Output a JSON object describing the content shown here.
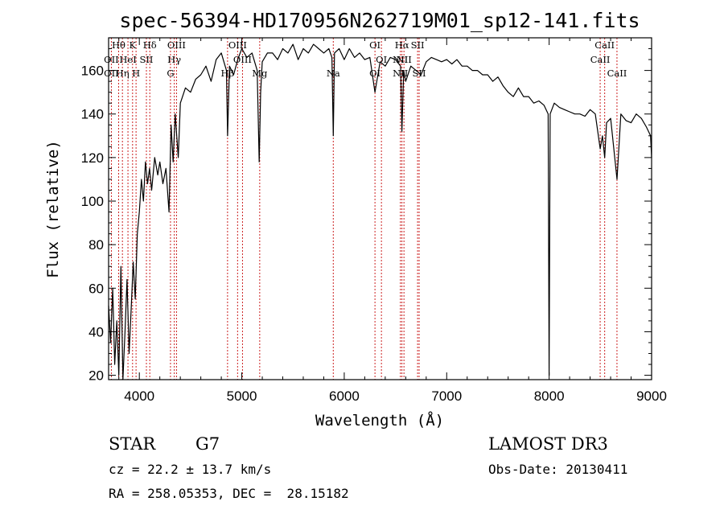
{
  "chart_data": {
    "type": "line",
    "title": "spec-56394-HD170956N262719M01_sp12-141.fits",
    "xlabel": "Wavelength (Å)",
    "ylabel": "Flux (relative)",
    "xlim": [
      3700,
      9000
    ],
    "ylim": [
      18,
      175
    ],
    "xticks": [
      4000,
      5000,
      6000,
      7000,
      8000,
      9000
    ],
    "yticks": [
      20,
      40,
      60,
      80,
      100,
      120,
      140,
      160
    ],
    "grid": false,
    "series": [
      {
        "name": "flux",
        "x": [
          3700,
          3720,
          3740,
          3760,
          3780,
          3800,
          3820,
          3840,
          3860,
          3880,
          3900,
          3920,
          3940,
          3960,
          3980,
          4000,
          4020,
          4040,
          4060,
          4080,
          4100,
          4120,
          4150,
          4180,
          4200,
          4230,
          4260,
          4290,
          4310,
          4330,
          4350,
          4380,
          4400,
          4450,
          4500,
          4550,
          4600,
          4650,
          4700,
          4750,
          4800,
          4850,
          4861,
          4880,
          4920,
          4960,
          5000,
          5050,
          5100,
          5150,
          5170,
          5184,
          5200,
          5250,
          5300,
          5350,
          5400,
          5450,
          5500,
          5550,
          5600,
          5650,
          5700,
          5750,
          5800,
          5850,
          5880,
          5893,
          5905,
          5950,
          6000,
          6050,
          6100,
          6150,
          6200,
          6250,
          6300,
          6350,
          6400,
          6450,
          6500,
          6550,
          6563,
          6580,
          6600,
          6650,
          6700,
          6750,
          6800,
          6850,
          6900,
          6950,
          7000,
          7050,
          7100,
          7150,
          7200,
          7250,
          7300,
          7350,
          7400,
          7450,
          7500,
          7550,
          7600,
          7650,
          7700,
          7750,
          7800,
          7850,
          7900,
          7950,
          7990,
          8000,
          8010,
          8050,
          8100,
          8150,
          8200,
          8250,
          8300,
          8350,
          8400,
          8450,
          8498,
          8520,
          8542,
          8560,
          8600,
          8662,
          8700,
          8750,
          8800,
          8850,
          8900,
          8950,
          8990,
          9000
        ],
        "y": [
          52,
          35,
          60,
          25,
          45,
          20,
          70,
          18,
          40,
          64,
          30,
          50,
          72,
          55,
          85,
          95,
          110,
          100,
          118,
          108,
          115,
          105,
          120,
          112,
          118,
          108,
          115,
          95,
          135,
          118,
          140,
          120,
          145,
          152,
          150,
          156,
          158,
          162,
          155,
          165,
          168,
          160,
          130,
          162,
          158,
          165,
          170,
          166,
          168,
          160,
          118,
          150,
          164,
          168,
          168,
          165,
          170,
          168,
          172,
          165,
          170,
          168,
          172,
          170,
          168,
          170,
          166,
          130,
          168,
          170,
          165,
          170,
          166,
          168,
          165,
          166,
          150,
          164,
          162,
          166,
          165,
          162,
          132,
          160,
          155,
          162,
          160,
          158,
          164,
          166,
          165,
          164,
          165,
          163,
          165,
          162,
          162,
          160,
          160,
          158,
          158,
          155,
          157,
          153,
          150,
          148,
          152,
          148,
          148,
          145,
          146,
          144,
          140,
          20,
          140,
          145,
          143,
          142,
          141,
          140,
          140,
          139,
          142,
          140,
          124,
          130,
          120,
          136,
          138,
          110,
          140,
          137,
          136,
          140,
          138,
          134,
          130,
          120
        ]
      }
    ],
    "lines": [
      {
        "name": "Hθ",
        "x": 3798
      },
      {
        "name": "OII",
        "x": 3727
      },
      {
        "name": "HeI",
        "x": 3889
      },
      {
        "name": "Hη",
        "x": 3835
      },
      {
        "name": "K",
        "x": 3934
      },
      {
        "name": "H",
        "x": 3968
      },
      {
        "name": "SII",
        "x": 4069
      },
      {
        "name": "Hδ",
        "x": 4102
      },
      {
        "name": "G",
        "x": 4304
      },
      {
        "name": "Hγ",
        "x": 4341
      },
      {
        "name": "OIII",
        "x": 4363
      },
      {
        "name": "Hβ",
        "x": 4861
      },
      {
        "name": "OIII",
        "x": 4959
      },
      {
        "name": "OIII",
        "x": 5007
      },
      {
        "name": "Mg",
        "x": 5175
      },
      {
        "name": "Na",
        "x": 5893
      },
      {
        "name": "OI",
        "x": 6300
      },
      {
        "name": "OI",
        "x": 6363
      },
      {
        "name": "NII",
        "x": 6548
      },
      {
        "name": "Hα",
        "x": 6563
      },
      {
        "name": "NII",
        "x": 6583
      },
      {
        "name": "SII",
        "x": 6716
      },
      {
        "name": "SII",
        "x": 6731
      },
      {
        "name": "CaII",
        "x": 8498
      },
      {
        "name": "CaII",
        "x": 8542
      },
      {
        "name": "CaII",
        "x": 8662
      }
    ],
    "annotations": [
      {
        "text": "Hθ",
        "x": 3798,
        "row": 1
      },
      {
        "text": "K",
        "x": 3934,
        "row": 1
      },
      {
        "text": "Hδ",
        "x": 4102,
        "row": 1
      },
      {
        "text": "OIII",
        "x": 4363,
        "row": 1
      },
      {
        "text": "OIII",
        "x": 4959,
        "row": 1
      },
      {
        "text": "OI",
        "x": 6300,
        "row": 1
      },
      {
        "text": "Hα",
        "x": 6563,
        "row": 1
      },
      {
        "text": "SII",
        "x": 6716,
        "row": 1
      },
      {
        "text": "CaII",
        "x": 8542,
        "row": 1
      },
      {
        "text": "OII",
        "x": 3727,
        "row": 2
      },
      {
        "text": "HeI",
        "x": 3889,
        "row": 2
      },
      {
        "text": "SII",
        "x": 4069,
        "row": 2
      },
      {
        "text": "Hγ",
        "x": 4341,
        "row": 2
      },
      {
        "text": "OIII",
        "x": 5007,
        "row": 2
      },
      {
        "text": "OI",
        "x": 6363,
        "row": 2
      },
      {
        "text": "NII",
        "x": 6583,
        "row": 2
      },
      {
        "text": "NII",
        "x": 6548,
        "row": 2
      },
      {
        "text": "CaII",
        "x": 8498,
        "row": 2
      },
      {
        "text": "OII",
        "x": 3727,
        "row": 3
      },
      {
        "text": "Hη",
        "x": 3835,
        "row": 3
      },
      {
        "text": "H",
        "x": 3968,
        "row": 3
      },
      {
        "text": "G",
        "x": 4304,
        "row": 3
      },
      {
        "text": "Hβ",
        "x": 4861,
        "row": 3
      },
      {
        "text": "Mg",
        "x": 5175,
        "row": 3
      },
      {
        "text": "Na",
        "x": 5893,
        "row": 3
      },
      {
        "text": "OI",
        "x": 6300,
        "row": 3
      },
      {
        "text": "NII",
        "x": 6548,
        "row": 3
      },
      {
        "text": "SII",
        "x": 6731,
        "row": 3
      },
      {
        "text": "CaII",
        "x": 8662,
        "row": 3
      }
    ]
  },
  "info": {
    "object_class": "STAR",
    "subclass": "G7",
    "redshift": "cz = 22.2 ± 13.7 km/s",
    "coords": "RA = 258.05353, DEC =  28.15182",
    "survey": "LAMOST DR3",
    "obs_date": "Obs-Date: 20130411"
  },
  "colors": {
    "line": "#000000",
    "marker": "#cc2222",
    "background": "#ffffff"
  }
}
